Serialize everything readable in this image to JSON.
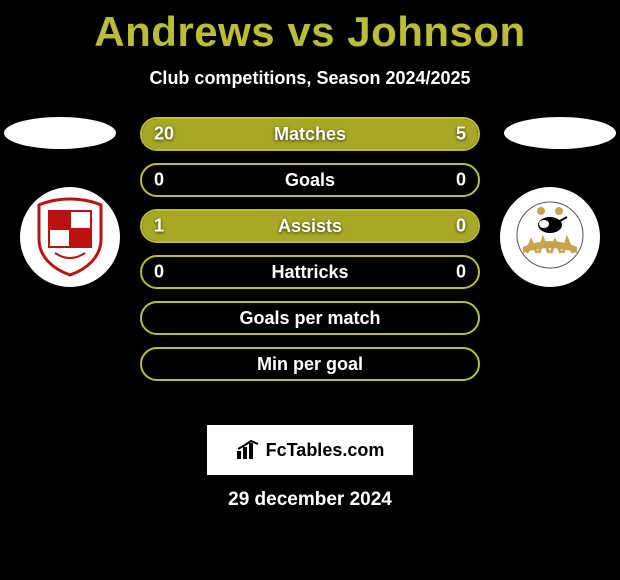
{
  "title": "Andrews vs Johnson",
  "subtitle": "Club competitions, Season 2024/2025",
  "date": "29 december 2024",
  "watermark": "FcTables.com",
  "colors": {
    "accent": "#a7a826",
    "accent_border": "#bcbd36",
    "fill_left": "#a7a826",
    "fill_right": "#a7a826",
    "text": "#ffffff",
    "title": "#bcbd36",
    "bg": "#000000"
  },
  "bars": [
    {
      "label": "Matches",
      "left": "20",
      "right": "5",
      "left_pct": 80,
      "right_pct": 20,
      "has_values": true
    },
    {
      "label": "Goals",
      "left": "0",
      "right": "0",
      "left_pct": 0,
      "right_pct": 0,
      "has_values": true
    },
    {
      "label": "Assists",
      "left": "1",
      "right": "0",
      "left_pct": 100,
      "right_pct": 0,
      "has_values": true
    },
    {
      "label": "Hattricks",
      "left": "0",
      "right": "0",
      "left_pct": 0,
      "right_pct": 0,
      "has_values": true
    },
    {
      "label": "Goals per match",
      "left": "",
      "right": "",
      "left_pct": 0,
      "right_pct": 0,
      "has_values": false
    },
    {
      "label": "Min per goal",
      "left": "",
      "right": "",
      "left_pct": 0,
      "right_pct": 0,
      "has_values": false
    }
  ]
}
